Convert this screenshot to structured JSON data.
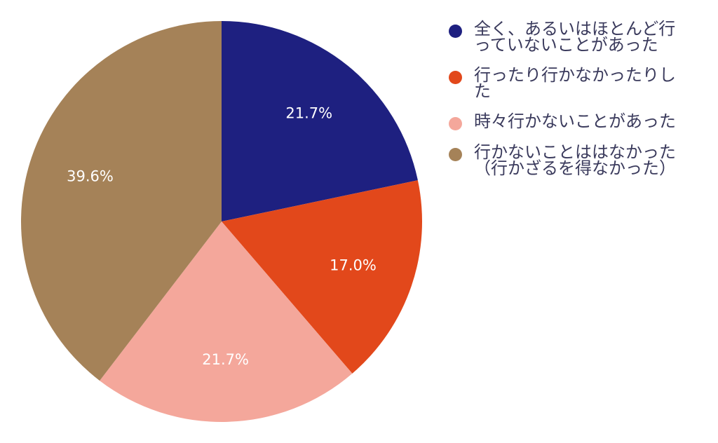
{
  "chart_data": {
    "type": "pie",
    "title": "",
    "start_angle_deg": 0,
    "direction": "clockwise",
    "legend_position": "right",
    "slices": [
      {
        "label": "全く、あるいはほとんど行っていないことがあった",
        "value": 21.7,
        "display": "21.7%",
        "color": "#1e2080"
      },
      {
        "label": "行ったり行かなかったりした",
        "value": 17.0,
        "display": "17.0%",
        "color": "#e2481b"
      },
      {
        "label": "時々行かないことがあった",
        "value": 21.7,
        "display": "21.7%",
        "color": "#f4a79b"
      },
      {
        "label": "行かないことははなかった（行かざるを得なかった）",
        "value": 39.6,
        "display": "39.6%",
        "color": "#a58258"
      }
    ]
  }
}
